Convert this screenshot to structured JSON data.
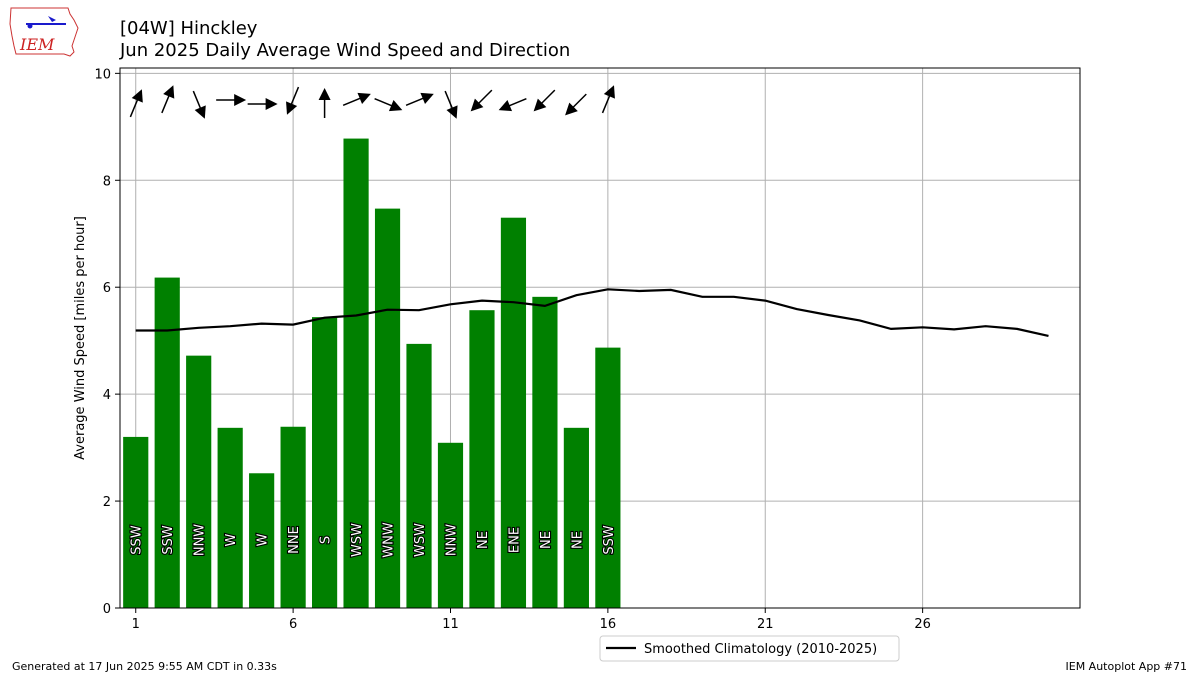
{
  "header": {
    "title_line1": "[04W] Hinckley",
    "title_line2": "Jun 2025 Daily Average Wind Speed and Direction"
  },
  "logo": {
    "text": "IEM",
    "icon": "iowa-state-outline-icon"
  },
  "footer": {
    "left": "Generated at 17 Jun 2025 9:55 AM CDT in 0.33s",
    "right": "IEM Autoplot App #71"
  },
  "legend": {
    "climatology_label": "Smoothed Climatology (2010-2025)"
  },
  "colors": {
    "bar": "#008000",
    "climatology": "#000000",
    "grid": "#b0b0b0",
    "arrow": "#000000"
  },
  "chart_data": {
    "type": "bar",
    "ylabel": "Average Wind Speed [miles per hour]",
    "xlabel": "",
    "xlim": [
      0.5,
      31
    ],
    "ylim": [
      0,
      10.1
    ],
    "xticks": [
      1,
      6,
      11,
      16,
      21,
      26
    ],
    "yticks": [
      0,
      2,
      4,
      6,
      8,
      10
    ],
    "grid": true,
    "legend_position": "bottom-center",
    "days": [
      1,
      2,
      3,
      4,
      5,
      6,
      7,
      8,
      9,
      10,
      11,
      12,
      13,
      14,
      15,
      16
    ],
    "values": [
      3.2,
      6.18,
      4.72,
      3.37,
      2.52,
      3.39,
      5.44,
      8.78,
      7.47,
      4.94,
      3.09,
      5.57,
      7.3,
      5.82,
      3.37,
      4.87
    ],
    "directions": [
      "SSW",
      "SSW",
      "NNW",
      "W",
      "W",
      "NNE",
      "S",
      "WSW",
      "WNW",
      "WSW",
      "NNW",
      "NE",
      "ENE",
      "NE",
      "NE",
      "SSW"
    ],
    "climatology": {
      "x": [
        1,
        2,
        3,
        4,
        5,
        6,
        7,
        8,
        9,
        10,
        11,
        12,
        13,
        14,
        15,
        16,
        17,
        18,
        19,
        20,
        21,
        22,
        23,
        24,
        25,
        26,
        27,
        28,
        29,
        30
      ],
      "values": [
        5.19,
        5.19,
        5.24,
        5.27,
        5.32,
        5.3,
        5.43,
        5.47,
        5.58,
        5.57,
        5.68,
        5.75,
        5.72,
        5.65,
        5.85,
        5.96,
        5.93,
        5.95,
        5.82,
        5.82,
        5.75,
        5.59,
        5.48,
        5.38,
        5.22,
        5.25,
        5.21,
        5.27,
        5.22,
        5.09
      ]
    }
  }
}
